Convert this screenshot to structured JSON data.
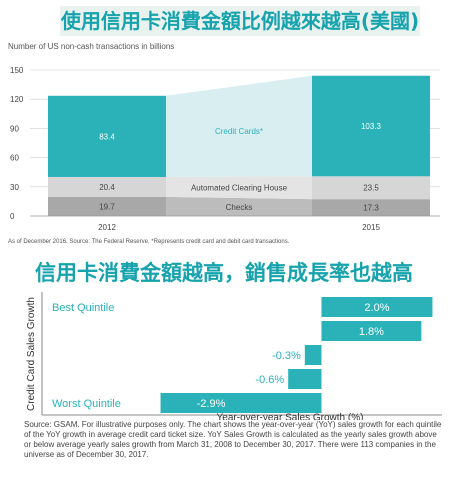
{
  "chart1": {
    "title": "使用信用卡消費金額比例越來越高(美國)",
    "ylabel": "Number of US non-cash transactions in billions",
    "note": "As of December 2016. Source: The Federal Reserve. *Represents credit card and debit card transactions.",
    "colors": {
      "credit": "#2ab2b8",
      "ach": "#d6d6d6",
      "checks": "#a8a8a8",
      "band": "#d9eef0"
    }
  },
  "chart2": {
    "title": "信用卡消費金額越高，銷售成長率也越高",
    "xlabel": "Year-over-year Sales Growth (%)",
    "ylabel": "Credit Card Sales Growth",
    "best_label": "Best Quintile",
    "worst_label": "Worst Quintile",
    "note": "Source: GSAM. For illustrative purposes only. The chart shows the year-over-year (YoY) sales growth for each quintile of the YoY growth in average credit card ticket size. YoY Sales Growth is calculated as the yearly sales growth above or below average yearly sales growth from March 31, 2008 to December 30, 2017. There were 113 companies in the universe as of December 30, 2017.",
    "color": "#2ab2b8"
  },
  "chart_data": [
    {
      "type": "bar",
      "stacked": true,
      "categories": [
        "2012",
        "2015"
      ],
      "series": [
        {
          "name": "Checks",
          "values": [
            19.7,
            17.3
          ]
        },
        {
          "name": "Automated Clearing House",
          "values": [
            20.4,
            23.5
          ]
        },
        {
          "name": "Credit Cards*",
          "values": [
            83.4,
            103.3
          ]
        }
      ],
      "yticks": [
        0,
        30,
        60,
        90,
        120,
        150
      ],
      "ylim": [
        0,
        150
      ],
      "ylabel": "Number of US non-cash transactions in billions",
      "grid": true
    },
    {
      "type": "bar",
      "orientation": "horizontal",
      "categories": [
        "Best Quintile",
        "",
        "",
        "",
        "Worst Quintile"
      ],
      "values": [
        2.0,
        1.8,
        -0.3,
        -0.6,
        -2.9
      ],
      "labels": [
        "2.0%",
        "1.8%",
        "-0.3%",
        "-0.6%",
        "-2.9%"
      ],
      "xlabel": "Year-over-year Sales Growth (%)",
      "ylabel": "Credit Card Sales Growth",
      "xlim": [
        -3.0,
        2.1
      ]
    }
  ]
}
